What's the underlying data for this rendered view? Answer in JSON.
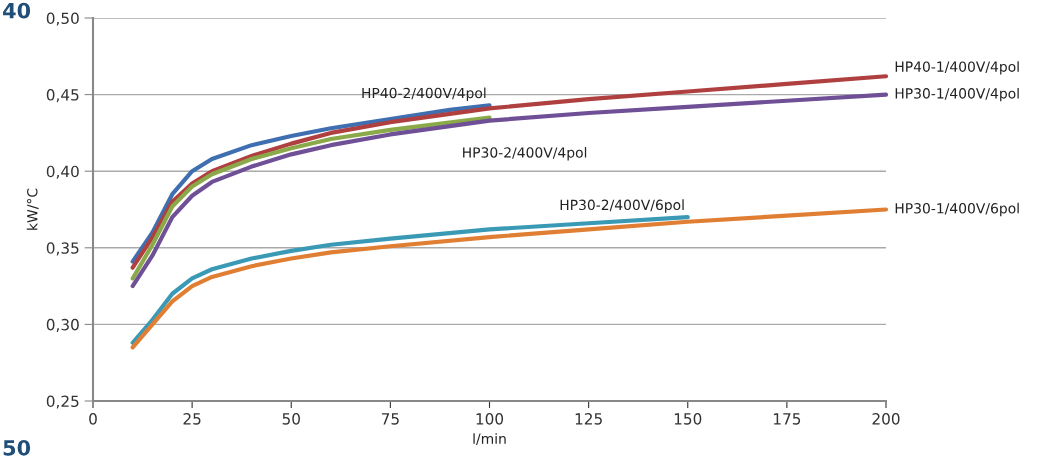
{
  "chart_data": {
    "type": "line",
    "xlabel": "l/min",
    "ylabel": "kW/°C",
    "xlim": [
      0,
      200
    ],
    "xticks": [
      0,
      25,
      50,
      75,
      100,
      125,
      150,
      175,
      200
    ],
    "ylim": [
      0.25,
      0.5
    ],
    "yticks": [
      {
        "value": 0.25,
        "label": "0,25"
      },
      {
        "value": 0.3,
        "label": "0,30"
      },
      {
        "value": 0.35,
        "label": "0,35"
      },
      {
        "value": 0.4,
        "label": "0,40"
      },
      {
        "value": 0.45,
        "label": "0,45"
      },
      {
        "value": 0.5,
        "label": "0,50"
      }
    ],
    "grid": "y",
    "legend": false,
    "marker": "none",
    "line_style": "solid",
    "annotations": [
      "40",
      "50"
    ],
    "series": [
      {
        "name": "HP40-2/400V/4pol",
        "color": "#3f6fb0",
        "x": [
          10,
          15,
          20,
          25,
          30,
          40,
          50,
          60,
          75,
          90,
          100
        ],
        "values": [
          0.341,
          0.36,
          0.385,
          0.4,
          0.408,
          0.417,
          0.423,
          0.428,
          0.434,
          0.44,
          0.443
        ]
      },
      {
        "name": "HP40-1/400V/4pol",
        "color": "#b04040",
        "x": [
          10,
          15,
          20,
          25,
          30,
          40,
          50,
          60,
          75,
          100,
          125,
          150,
          175,
          200
        ],
        "values": [
          0.337,
          0.357,
          0.38,
          0.392,
          0.4,
          0.41,
          0.418,
          0.425,
          0.432,
          0.441,
          0.447,
          0.452,
          0.457,
          0.462
        ]
      },
      {
        "name": "HP30-2/400V/4pol",
        "color": "#8aaa4a",
        "x": [
          10,
          15,
          20,
          25,
          30,
          40,
          50,
          60,
          75,
          100
        ],
        "values": [
          0.33,
          0.352,
          0.377,
          0.39,
          0.398,
          0.408,
          0.415,
          0.421,
          0.427,
          0.435
        ]
      },
      {
        "name": "HP30-1/400V/4pol",
        "color": "#6f4f96",
        "x": [
          10,
          15,
          20,
          25,
          30,
          40,
          50,
          60,
          75,
          100,
          125,
          150,
          175,
          200
        ],
        "values": [
          0.325,
          0.345,
          0.37,
          0.384,
          0.393,
          0.403,
          0.411,
          0.417,
          0.424,
          0.433,
          0.438,
          0.442,
          0.446,
          0.45
        ]
      },
      {
        "name": "HP30-2/400V/6pol",
        "color": "#3a9ab5",
        "x": [
          10,
          15,
          20,
          25,
          30,
          40,
          50,
          60,
          75,
          100,
          125,
          150
        ],
        "values": [
          0.288,
          0.303,
          0.32,
          0.33,
          0.336,
          0.343,
          0.348,
          0.352,
          0.356,
          0.362,
          0.366,
          0.37
        ]
      },
      {
        "name": "HP30-1/400V/6pol",
        "color": "#e07f34",
        "x": [
          10,
          15,
          20,
          25,
          30,
          40,
          50,
          60,
          75,
          100,
          125,
          150,
          175,
          200
        ],
        "values": [
          0.285,
          0.3,
          0.315,
          0.325,
          0.331,
          0.338,
          0.343,
          0.347,
          0.351,
          0.357,
          0.362,
          0.367,
          0.371,
          0.375
        ]
      }
    ]
  }
}
